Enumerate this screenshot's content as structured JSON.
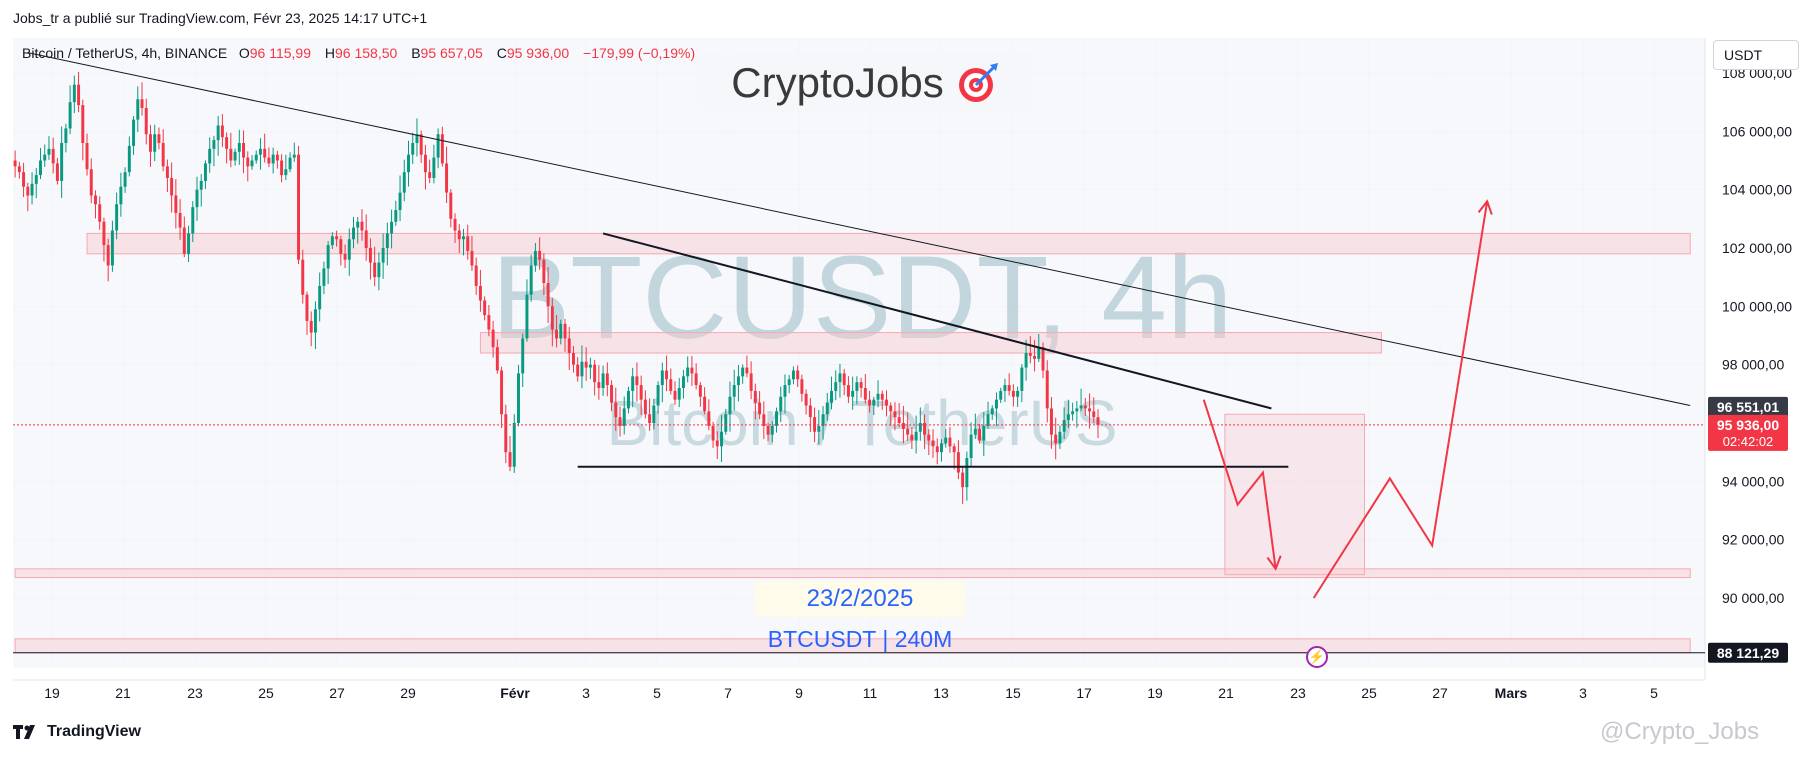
{
  "header": {
    "publisher_line": "Jobs_tr a publié sur TradingView.com, Févr 23, 2025 14:17 UTC+1"
  },
  "legend": {
    "symbol": "Bitcoin / TetherUS, 4h, BINANCE",
    "open_label": "O",
    "open": "96 115,99",
    "high_label": "H",
    "high": "96 158,50",
    "low_label": "B",
    "low": "95 657,05",
    "close_label": "C",
    "close": "95 936,00",
    "change": "−179,99 (−0,19%)"
  },
  "brand": {
    "text": "CryptoJobs",
    "icon": "target-dart-icon"
  },
  "currency_button": "USDT",
  "annotations": {
    "date": "23/2/2025",
    "symbol_tf": "BTCUSDT | 240M"
  },
  "watermark": {
    "main": "BTCUSDT, 4h",
    "sub": "Bitcoin / TetherUS"
  },
  "footer": {
    "logo_text": "TradingView"
  },
  "credit": "@Crypto_Jobs",
  "colors": {
    "up": "#089981",
    "down": "#f23645",
    "zone_fill": "#f7c9cf",
    "zone_border": "#f7a8b1",
    "arrow": "#f23645",
    "text_blue": "#2962ff",
    "grid": "#f0f3fa"
  },
  "chart_data": {
    "type": "candlestick",
    "x_tick_labels": [
      "19",
      "21",
      "23",
      "25",
      "27",
      "29",
      "Févr",
      "3",
      "5",
      "7",
      "9",
      "11",
      "13",
      "15",
      "17",
      "19",
      "21",
      "23",
      "25",
      "27",
      "Mars",
      "3",
      "5"
    ],
    "y_tick_labels": [
      "108 000,00",
      "106 000,00",
      "104 000,00",
      "102 000,00",
      "100 000,00",
      "98 000,00",
      "94 000,00",
      "92 000,00",
      "90 000,00"
    ],
    "y_range": [
      87600,
      109200
    ],
    "price_labels": [
      {
        "text": "96 551,01",
        "price": 96551.01,
        "style": "dark"
      },
      {
        "text": "95 936,00",
        "price": 95936.0,
        "style": "red",
        "sub": "02:42:02"
      },
      {
        "text": "88 121,29",
        "price": 88121.29,
        "style": "black"
      }
    ],
    "series_close": [
      104800,
      104600,
      104100,
      103800,
      104200,
      104500,
      105000,
      105200,
      105400,
      104900,
      104300,
      105600,
      106100,
      107000,
      107600,
      106900,
      105600,
      104700,
      103800,
      103500,
      102900,
      102100,
      101400,
      102600,
      103500,
      104100,
      104600,
      105500,
      106400,
      107100,
      106800,
      105900,
      105300,
      105900,
      105600,
      104800,
      104400,
      103800,
      103200,
      102700,
      101800,
      102500,
      103400,
      104000,
      104300,
      104900,
      105400,
      105700,
      106200,
      105800,
      105400,
      105000,
      105300,
      105600,
      105100,
      104800,
      105000,
      105200,
      105400,
      105100,
      104900,
      105200,
      105000,
      104500,
      104700,
      105100,
      105200,
      101600,
      100400,
      99500,
      99100,
      99900,
      100700,
      101300,
      102100,
      102400,
      102300,
      101800,
      101600,
      102300,
      102700,
      102900,
      102600,
      102000,
      101500,
      101000,
      101500,
      102000,
      102500,
      102900,
      103300,
      103900,
      104600,
      105200,
      105600,
      105900,
      105200,
      104600,
      104400,
      105100,
      105900,
      104900,
      103900,
      103000,
      102600,
      102300,
      102400,
      101900,
      101400,
      100700,
      100200,
      99700,
      99200,
      98600,
      97800,
      96300,
      95000,
      94500,
      96000,
      97700,
      98900,
      100400,
      101400,
      101900,
      101600,
      100800,
      100000,
      99200,
      98900,
      99400,
      98900,
      98400,
      98000,
      97600,
      98100,
      97900,
      98000,
      97400,
      97200,
      97700,
      97300,
      96700,
      96200,
      95900,
      96500,
      97100,
      97600,
      97300,
      96800,
      96300,
      96000,
      96600,
      97300,
      97800,
      97500,
      97100,
      96800,
      97200,
      97600,
      97900,
      97700,
      97300,
      96900,
      96400,
      95900,
      95400,
      95200,
      95700,
      96300,
      96900,
      97300,
      97600,
      97900,
      97700,
      97100,
      96700,
      96300,
      95900,
      95600,
      95900,
      96400,
      96900,
      97300,
      97500,
      97800,
      97500,
      97000,
      96600,
      96200,
      95700,
      95900,
      96300,
      96700,
      97100,
      97400,
      97700,
      97300,
      96900,
      97100,
      97400,
      97200,
      96800,
      96600,
      96800,
      97000,
      96800,
      96600,
      96400,
      96200,
      96000,
      95800,
      95600,
      95400,
      95700,
      96000,
      95600,
      95400,
      95200,
      95000,
      95300,
      95500,
      95200,
      95000,
      94300,
      93800,
      94800,
      95600,
      95800,
      95400,
      95900,
      96300,
      96500,
      96800,
      97100,
      97300,
      97100,
      96900,
      97100,
      97900,
      98400,
      98300,
      98200,
      98600,
      97800,
      96500,
      95600,
      95300,
      95700,
      96100,
      96300,
      96400,
      96500,
      96600,
      96500,
      96400,
      96200,
      95936
    ],
    "trend_lines": [
      {
        "name": "long-downtrend",
        "from": {
          "bar": 3,
          "price": 108700
        },
        "to": {
          "bar": 396,
          "price": 96600
        }
      },
      {
        "name": "triangle-upper",
        "from": {
          "bar": 139,
          "price": 102500
        },
        "to": {
          "bar": 297,
          "price": 96500
        }
      },
      {
        "name": "triangle-support",
        "from": {
          "bar": 133,
          "price": 94500
        },
        "to": {
          "bar": 301,
          "price": 94500
        }
      }
    ],
    "zones": [
      {
        "name": "resistance-102k",
        "from": {
          "bar": 17,
          "price": 102500
        },
        "to": {
          "bar": 396,
          "price": 101800
        }
      },
      {
        "name": "resistance-99k",
        "from": {
          "bar": 110,
          "price": 99100
        },
        "to": {
          "bar": 323,
          "price": 98400
        }
      },
      {
        "name": "support-91k",
        "from": {
          "bar": 0,
          "price": 91000
        },
        "to": {
          "bar": 396,
          "price": 90700
        }
      },
      {
        "name": "support-88k",
        "from": {
          "bar": 0,
          "price": 88600
        },
        "to": {
          "bar": 396,
          "price": 88121
        }
      },
      {
        "name": "target-box",
        "from": {
          "bar": 286,
          "price": 96300
        },
        "to": {
          "bar": 319,
          "price": 90800
        }
      }
    ],
    "arrows": [
      {
        "name": "drop-arrow",
        "points": [
          {
            "bar": 281,
            "price": 96800
          },
          {
            "bar": 289,
            "price": 93200
          },
          {
            "bar": 295,
            "price": 94300
          },
          {
            "bar": 298,
            "price": 91000
          }
        ]
      },
      {
        "name": "bounce-arrow",
        "points": [
          {
            "bar": 307,
            "price": 90000
          },
          {
            "bar": 325,
            "price": 94100
          },
          {
            "bar": 335,
            "price": 91800
          },
          {
            "bar": 348,
            "price": 103600
          }
        ]
      }
    ],
    "last_bar": 313,
    "grid": true
  }
}
